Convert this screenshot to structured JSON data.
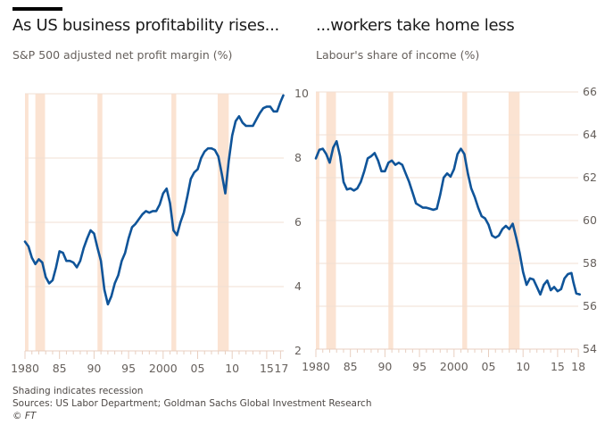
{
  "left": {
    "title": "As US business profitability rises...",
    "subtitle": "S&P 500 adjusted net profit margin (%)"
  },
  "right": {
    "title": "...workers take home less",
    "subtitle": "Labour's share of income (%)"
  },
  "footer": {
    "note": "Shading indicates recession",
    "sources": "Sources: US Labor Department; Goldman Sachs Global Investment Research",
    "copyright": "© FT"
  },
  "colors": {
    "line": "#0f5499",
    "recession": "#fbe3d2",
    "grid": "#f2dfd3",
    "axis": "#e8cfc0",
    "text": "#66605c"
  },
  "chart_data": [
    {
      "type": "line",
      "title": "As US business profitability rises...",
      "subtitle": "S&P 500 adjusted net profit margin (%)",
      "xlabel": "",
      "ylabel": "",
      "xlim": [
        1980,
        2017.5
      ],
      "ylim": [
        2,
        10
      ],
      "yticks": [
        2,
        4,
        6,
        8,
        10
      ],
      "yaxis_side": "right",
      "xticks": [
        1980,
        1985,
        1990,
        1995,
        2000,
        2005,
        2010,
        2015,
        2017
      ],
      "xtick_labels": [
        "1980",
        "85",
        "90",
        "95",
        "2000",
        "05",
        "10",
        "15",
        "17"
      ],
      "grid": true,
      "recessions": [
        [
          1980.0,
          1980.5
        ],
        [
          1981.5,
          1982.9
        ],
        [
          1990.5,
          1991.2
        ],
        [
          2001.2,
          2001.9
        ],
        [
          2007.9,
          2009.5
        ]
      ],
      "series": [
        {
          "name": "S&P 500 adjusted net profit margin",
          "x": [
            1980.0,
            1980.5,
            1981.0,
            1981.5,
            1982.0,
            1982.5,
            1983.0,
            1983.5,
            1984.0,
            1984.5,
            1985.0,
            1985.5,
            1986.0,
            1986.5,
            1987.0,
            1987.5,
            1988.0,
            1988.5,
            1989.0,
            1989.5,
            1990.0,
            1990.5,
            1991.0,
            1991.5,
            1992.0,
            1992.5,
            1993.0,
            1993.5,
            1994.0,
            1994.5,
            1995.0,
            1995.5,
            1996.0,
            1996.5,
            1997.0,
            1997.5,
            1998.0,
            1998.5,
            1999.0,
            1999.5,
            2000.0,
            2000.5,
            2001.0,
            2001.5,
            2002.0,
            2002.5,
            2003.0,
            2003.5,
            2004.0,
            2004.5,
            2005.0,
            2005.5,
            2006.0,
            2006.5,
            2007.0,
            2007.5,
            2008.0,
            2008.5,
            2009.0,
            2009.5,
            2010.0,
            2010.5,
            2011.0,
            2011.5,
            2012.0,
            2012.5,
            2013.0,
            2013.5,
            2014.0,
            2014.5,
            2015.0,
            2015.5,
            2016.0,
            2016.5,
            2017.0,
            2017.4
          ],
          "values": [
            5.4,
            5.25,
            4.9,
            4.7,
            4.85,
            4.75,
            4.3,
            4.1,
            4.2,
            4.6,
            5.1,
            5.05,
            4.8,
            4.8,
            4.75,
            4.6,
            4.8,
            5.2,
            5.5,
            5.75,
            5.65,
            5.2,
            4.8,
            3.9,
            3.45,
            3.7,
            4.1,
            4.35,
            4.8,
            5.05,
            5.5,
            5.85,
            5.95,
            6.1,
            6.25,
            6.35,
            6.3,
            6.35,
            6.35,
            6.55,
            6.9,
            7.05,
            6.6,
            5.75,
            5.6,
            6.0,
            6.3,
            6.8,
            7.35,
            7.55,
            7.65,
            8.0,
            8.2,
            8.3,
            8.3,
            8.25,
            8.05,
            7.5,
            6.9,
            7.9,
            8.7,
            9.15,
            9.3,
            9.1,
            9.0,
            9.0,
            9.0,
            9.2,
            9.4,
            9.55,
            9.6,
            9.6,
            9.45,
            9.45,
            9.75,
            9.95
          ]
        }
      ]
    },
    {
      "type": "line",
      "title": "...workers take home less",
      "subtitle": "Labour's share of income (%)",
      "xlabel": "",
      "ylabel": "",
      "xlim": [
        1980,
        2018
      ],
      "ylim": [
        54,
        66
      ],
      "yticks": [
        54,
        56,
        58,
        60,
        62,
        64,
        66
      ],
      "yaxis_side": "right",
      "xticks": [
        1980,
        1985,
        1990,
        1995,
        2000,
        2005,
        2010,
        2015,
        2018
      ],
      "xtick_labels": [
        "1980",
        "85",
        "90",
        "95",
        "2000",
        "05",
        "10",
        "15",
        "18"
      ],
      "grid": true,
      "recessions": [
        [
          1980.0,
          1980.5
        ],
        [
          1981.5,
          1982.9
        ],
        [
          1990.5,
          1991.2
        ],
        [
          2001.2,
          2001.9
        ],
        [
          2007.9,
          2009.5
        ]
      ],
      "series": [
        {
          "name": "Labour's share of income",
          "x": [
            1980.0,
            1980.5,
            1981.0,
            1981.5,
            1982.0,
            1982.5,
            1983.0,
            1983.5,
            1984.0,
            1984.5,
            1985.0,
            1985.5,
            1986.0,
            1986.5,
            1987.0,
            1987.5,
            1988.0,
            1988.5,
            1989.0,
            1989.5,
            1990.0,
            1990.5,
            1991.0,
            1991.5,
            1992.0,
            1992.5,
            1993.0,
            1993.5,
            1994.0,
            1994.5,
            1995.0,
            1995.5,
            1996.0,
            1996.5,
            1997.0,
            1997.5,
            1998.0,
            1998.5,
            1999.0,
            1999.5,
            2000.0,
            2000.5,
            2001.0,
            2001.5,
            2002.0,
            2002.5,
            2003.0,
            2003.5,
            2004.0,
            2004.5,
            2005.0,
            2005.5,
            2006.0,
            2006.5,
            2007.0,
            2007.5,
            2008.0,
            2008.5,
            2009.0,
            2009.5,
            2010.0,
            2010.5,
            2011.0,
            2011.5,
            2012.0,
            2012.5,
            2013.0,
            2013.5,
            2014.0,
            2014.5,
            2015.0,
            2015.5,
            2016.0,
            2016.5,
            2017.0,
            2017.3,
            2017.7,
            2018.2
          ],
          "values": [
            62.9,
            63.3,
            63.35,
            63.1,
            62.7,
            63.4,
            63.7,
            63.0,
            61.8,
            61.45,
            61.5,
            61.4,
            61.5,
            61.8,
            62.3,
            62.9,
            63.0,
            63.15,
            62.8,
            62.3,
            62.3,
            62.7,
            62.8,
            62.6,
            62.7,
            62.6,
            62.2,
            61.8,
            61.3,
            60.8,
            60.7,
            60.6,
            60.6,
            60.55,
            60.5,
            60.55,
            61.2,
            62.0,
            62.2,
            62.05,
            62.4,
            63.1,
            63.35,
            63.1,
            62.2,
            61.5,
            61.1,
            60.6,
            60.2,
            60.1,
            59.8,
            59.3,
            59.2,
            59.3,
            59.6,
            59.75,
            59.6,
            59.85,
            59.2,
            58.5,
            57.6,
            57.0,
            57.3,
            57.25,
            56.9,
            56.55,
            57.0,
            57.2,
            56.75,
            56.9,
            56.7,
            56.8,
            57.3,
            57.5,
            57.55,
            57.1,
            56.6,
            56.55
          ]
        }
      ]
    }
  ]
}
